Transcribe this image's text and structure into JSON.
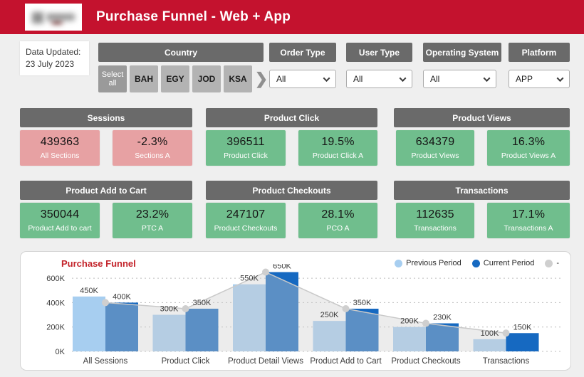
{
  "header": {
    "title": "Purchase Funnel - Web + App"
  },
  "filters": {
    "data_updated_line1": "Data Updated:",
    "data_updated_line2": "23 July 2023",
    "country": {
      "label": "Country",
      "select_all": "Select all",
      "options": [
        "BAH",
        "EGY",
        "JOD",
        "KSA"
      ]
    },
    "dropdowns": [
      {
        "label": "Order Type",
        "value": "All"
      },
      {
        "label": "User Type",
        "value": "All"
      },
      {
        "label": "Operating System",
        "value": "All"
      },
      {
        "label": "Platform",
        "value": "APP"
      }
    ]
  },
  "kpi_sections": [
    {
      "title": "Sessions",
      "tone": "pink",
      "cards": [
        {
          "value": "439363",
          "label": "All Sections"
        },
        {
          "value": "-2.3%",
          "label": "Sections A"
        }
      ]
    },
    {
      "title": "Product Click",
      "tone": "green",
      "cards": [
        {
          "value": "396511",
          "label": "Product Click"
        },
        {
          "value": "19.5%",
          "label": "Product Click A"
        }
      ]
    },
    {
      "title": "Product Views",
      "tone": "green",
      "cards": [
        {
          "value": "634379",
          "label": "Product Views"
        },
        {
          "value": "16.3%",
          "label": "Product Views A"
        }
      ]
    },
    {
      "title": "Product Add to Cart",
      "tone": "green",
      "cards": [
        {
          "value": "350044",
          "label": "Product Add to cart"
        },
        {
          "value": "23.2%",
          "label": "PTC A"
        }
      ]
    },
    {
      "title": "Product Checkouts",
      "tone": "green",
      "cards": [
        {
          "value": "247107",
          "label": "Product Checkouts"
        },
        {
          "value": "28.1%",
          "label": "PCO A"
        }
      ]
    },
    {
      "title": "Transactions",
      "tone": "green",
      "cards": [
        {
          "value": "112635",
          "label": "Transactions"
        },
        {
          "value": "17.1%",
          "label": "Transactions A"
        }
      ]
    }
  ],
  "chart_data": {
    "type": "bar",
    "title": "Purchase Funnel",
    "categories": [
      "All Sessions",
      "Product Click",
      "Product Detail Views",
      "Product Add to Cart",
      "Product Checkouts",
      "Transactions"
    ],
    "series": [
      {
        "name": "Previous Period",
        "color": "#A7CEF0",
        "values": [
          450000,
          300000,
          550000,
          250000,
          200000,
          100000
        ]
      },
      {
        "name": "Current Period",
        "color": "#1669C1",
        "values": [
          400000,
          350000,
          650000,
          350000,
          230000,
          150000
        ]
      }
    ],
    "connector": {
      "name": "-",
      "color": "#CFCFCF",
      "fill_opacity": 0.38,
      "follows": "Current Period"
    },
    "value_labels": {
      "Previous Period": [
        "450K",
        "300K",
        "550K",
        "250K",
        "200K",
        "100K"
      ],
      "Current Period": [
        "400K",
        "350K",
        "650K",
        "350K",
        "230K",
        "150K"
      ]
    },
    "y_ticks": [
      "0K",
      "200K",
      "400K",
      "600K"
    ],
    "y_tick_values": [
      0,
      200000,
      400000,
      600000
    ],
    "ylim": [
      0,
      680000
    ],
    "grid": "dotted-horizontal",
    "legend_position": "top-right"
  },
  "colors": {
    "header_red": "#C4122E",
    "page_bg": "#EFEFEF",
    "section_gray": "#6A6A6A",
    "kpi_pink": "#E7A1A3",
    "kpi_green": "#70BE8D",
    "bar_previous": "#A7CEF0",
    "bar_current": "#1669C1",
    "connector_gray": "#CFCFCF",
    "chart_title_red": "#C3242B"
  }
}
